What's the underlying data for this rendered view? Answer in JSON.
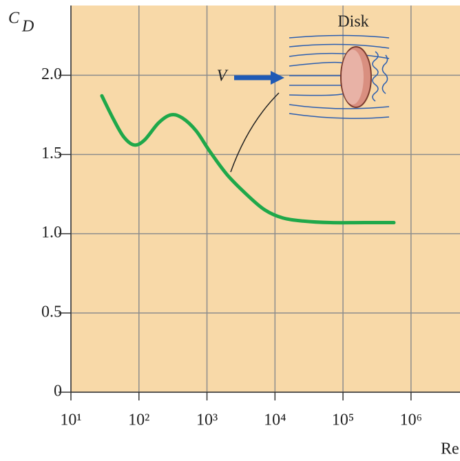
{
  "chart_data": {
    "type": "line",
    "ylabel": "C",
    "ylabel_sub": "D",
    "xlabel": "Re",
    "annotations": [
      "Disk",
      "V"
    ],
    "log_x": true,
    "grid": true,
    "color": "#1fa84a",
    "background": "#f8d9a8",
    "x": [
      28.5,
      42.5,
      60,
      85,
      120,
      195,
      295,
      435,
      690,
      1100,
      2000,
      4000,
      7100,
      12900,
      25700,
      66000,
      209000,
      560000
    ],
    "values": [
      1.87,
      1.72,
      1.61,
      1.56,
      1.59,
      1.7,
      1.75,
      1.73,
      1.65,
      1.52,
      1.37,
      1.24,
      1.15,
      1.1,
      1.08,
      1.07,
      1.07,
      1.07
    ],
    "xlim": [
      10,
      5250000
    ],
    "ylim": [
      0,
      2.44
    ],
    "xticks": [
      {
        "value": 10,
        "label": "10¹"
      },
      {
        "value": 100,
        "label": "10²"
      },
      {
        "value": 1000,
        "label": "10³"
      },
      {
        "value": 10000,
        "label": "10⁴"
      },
      {
        "value": 100000,
        "label": "10⁵"
      },
      {
        "value": 1000000,
        "label": "10⁶"
      }
    ],
    "yticks": [
      {
        "value": 0,
        "label": "0"
      },
      0.5,
      {
        "value": 1,
        "label": "1.0"
      },
      {
        "value": 1.5,
        "label": "1.5"
      },
      {
        "value": 2,
        "label": "2.0"
      }
    ]
  }
}
